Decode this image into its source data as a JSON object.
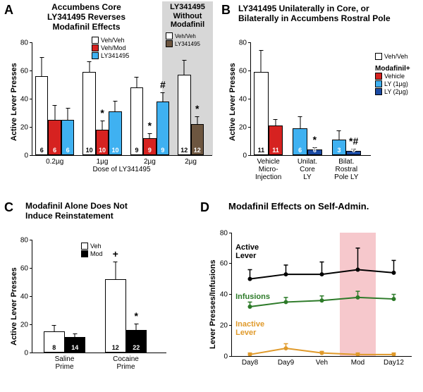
{
  "colors": {
    "white": "#ffffff",
    "red": "#d62220",
    "blue": "#3fb1f1",
    "brown": "#6d5640",
    "black": "#000000",
    "darkgreen": "#2c7a28",
    "orange": "#e09a2b",
    "pink_shade": "#f6c8cc",
    "gray_shade": "#d7d7d7"
  },
  "panelA": {
    "letter": "A",
    "title1": "Accumbens Core",
    "title2": "LY341495 Reverses",
    "title3": "Modafinil Effects",
    "title_right1": "LY341495",
    "title_right2": "Without",
    "title_right3": "Modafinil",
    "ylabel": "Active Lever Presses",
    "xlabel": "Dose of LY341495",
    "ymax": 80,
    "ytick_step": 20,
    "groups": [
      {
        "label": "0.2µg",
        "bars": [
          {
            "v": 56,
            "err": 14,
            "n": "6",
            "color": "#ffffff",
            "nColor": "#000000"
          },
          {
            "v": 25,
            "err": 11,
            "n": "6",
            "color": "#d62220",
            "nColor": "#ffffff"
          },
          {
            "v": 25,
            "err": 9,
            "n": "6",
            "color": "#3fb1f1",
            "nColor": "#ffffff"
          }
        ]
      },
      {
        "label": "1µg",
        "bars": [
          {
            "v": 59,
            "err": 8,
            "n": "10",
            "color": "#ffffff",
            "nColor": "#000000"
          },
          {
            "v": 18,
            "err": 7,
            "n": "10",
            "color": "#d62220",
            "nColor": "#ffffff",
            "sig": "*"
          },
          {
            "v": 31,
            "err": 8,
            "n": "10",
            "color": "#3fb1f1",
            "nColor": "#ffffff"
          }
        ]
      },
      {
        "label": "2µg",
        "bars": [
          {
            "v": 48,
            "err": 8,
            "n": "9",
            "color": "#ffffff",
            "nColor": "#000000"
          },
          {
            "v": 12,
            "err": 4,
            "n": "9",
            "color": "#d62220",
            "nColor": "#ffffff",
            "sig": "*"
          },
          {
            "v": 38,
            "err": 7,
            "n": "9",
            "color": "#3fb1f1",
            "nColor": "#ffffff",
            "sig": "#"
          }
        ]
      },
      {
        "label": "2µg",
        "bars": [
          {
            "v": 57,
            "err": 11,
            "n": "12",
            "color": "#ffffff",
            "nColor": "#000000"
          },
          {
            "v": 22,
            "err": 6,
            "n": "12",
            "color": "#6d5640",
            "nColor": "#ffffff",
            "sig": "*"
          }
        ]
      }
    ],
    "legend_left": [
      {
        "label": "Veh/Veh",
        "color": "#ffffff"
      },
      {
        "label": "Veh/Mod",
        "color": "#d62220"
      },
      {
        "label": "LY341495",
        "color": "#3fb1f1"
      }
    ],
    "legend_right": [
      {
        "label": "Veh/Veh",
        "color": "#ffffff"
      },
      {
        "label": "LY341495",
        "color": "#6d5640"
      }
    ]
  },
  "panelB": {
    "letter": "B",
    "title1": "LY341495 Unilaterally in Core, or",
    "title2": "Bilaterally in Accumbens Rostral Pole",
    "ylabel": "Active Lever Presses",
    "ymax": 80,
    "ytick_step": 20,
    "legend_title": "Modafinil+",
    "legend": [
      {
        "label": "Veh/Veh",
        "color": "#ffffff"
      },
      {
        "label": "Vehicle",
        "color": "#d62220"
      },
      {
        "label": "LY (1µg)",
        "color": "#3fb1f1"
      },
      {
        "label": "LY (2µg)",
        "color": "#1a4aa3"
      }
    ],
    "groups": [
      {
        "label": "Vehicle\nMicro-\nInjection",
        "bars": [
          {
            "v": 59,
            "err": 16,
            "n": "11",
            "color": "#ffffff",
            "nColor": "#000000"
          },
          {
            "v": 21,
            "err": 5,
            "n": "11",
            "color": "#d62220",
            "nColor": "#ffffff"
          }
        ]
      },
      {
        "label": "Unilat.\nCore\nLY",
        "bars": [
          {
            "v": 19,
            "err": 9,
            "n": "6",
            "color": "#3fb1f1",
            "nColor": "#ffffff"
          },
          {
            "v": 4,
            "err": 2,
            "n": "6",
            "color": "#1a4aa3",
            "nColor": "#ffffff",
            "sig": "*"
          }
        ]
      },
      {
        "label": "Bilat.\nRostral\nPole LY",
        "bars": [
          {
            "v": 11,
            "err": 7,
            "n": "3",
            "color": "#3fb1f1",
            "nColor": "#ffffff"
          },
          {
            "v": 3,
            "err": 2,
            "n": "5",
            "color": "#1a4aa3",
            "nColor": "#ffffff",
            "sig": "*#"
          }
        ]
      }
    ]
  },
  "panelC": {
    "letter": "C",
    "title1": "Modafinil Alone Does Not",
    "title2": "Induce Reinstatement",
    "ylabel": "Active Lever Presses",
    "ymax": 80,
    "ytick_step": 20,
    "legend": [
      {
        "label": "Veh",
        "color": "#ffffff"
      },
      {
        "label": "Mod",
        "color": "#000000"
      }
    ],
    "groups": [
      {
        "label": "Saline\nPrime",
        "bars": [
          {
            "v": 15,
            "err": 5,
            "n": "8",
            "color": "#ffffff",
            "nColor": "#000000"
          },
          {
            "v": 11,
            "err": 3,
            "n": "14",
            "color": "#000000",
            "nColor": "#ffffff"
          }
        ]
      },
      {
        "label": "Cocaine\nPrime",
        "bars": [
          {
            "v": 52,
            "err": 13,
            "n": "12",
            "color": "#ffffff",
            "nColor": "#000000",
            "sig": "+"
          },
          {
            "v": 16,
            "err": 5,
            "n": "22",
            "color": "#000000",
            "nColor": "#ffffff",
            "sig": "*"
          }
        ]
      }
    ]
  },
  "panelD": {
    "letter": "D",
    "title": "Modafinil Effects on Self-Admin.",
    "ylabel": "Lever Presses/Infusions",
    "ymax": 80,
    "ytick_step": 20,
    "xlabels": [
      "Day8",
      "Day9",
      "Veh",
      "Mod",
      "Day12"
    ],
    "highlight_idx": 3,
    "series": [
      {
        "name": "Active Lever",
        "color": "#000000",
        "y": [
          50,
          53,
          53,
          56,
          54
        ],
        "err": [
          6,
          6,
          8,
          14,
          8
        ]
      },
      {
        "name": "Infusions",
        "color": "#2c7a28",
        "y": [
          32,
          35,
          36,
          38,
          37
        ],
        "err": [
          3,
          3,
          3,
          4,
          3
        ]
      },
      {
        "name": "Inactive Lever",
        "color": "#e09a2b",
        "y": [
          1,
          5,
          2,
          1,
          1
        ],
        "err": [
          1,
          3,
          1,
          1,
          1
        ]
      }
    ],
    "label_active": "Active\nLever",
    "label_infusions": "Infusions",
    "label_inactive": "Inactive\nLever"
  }
}
